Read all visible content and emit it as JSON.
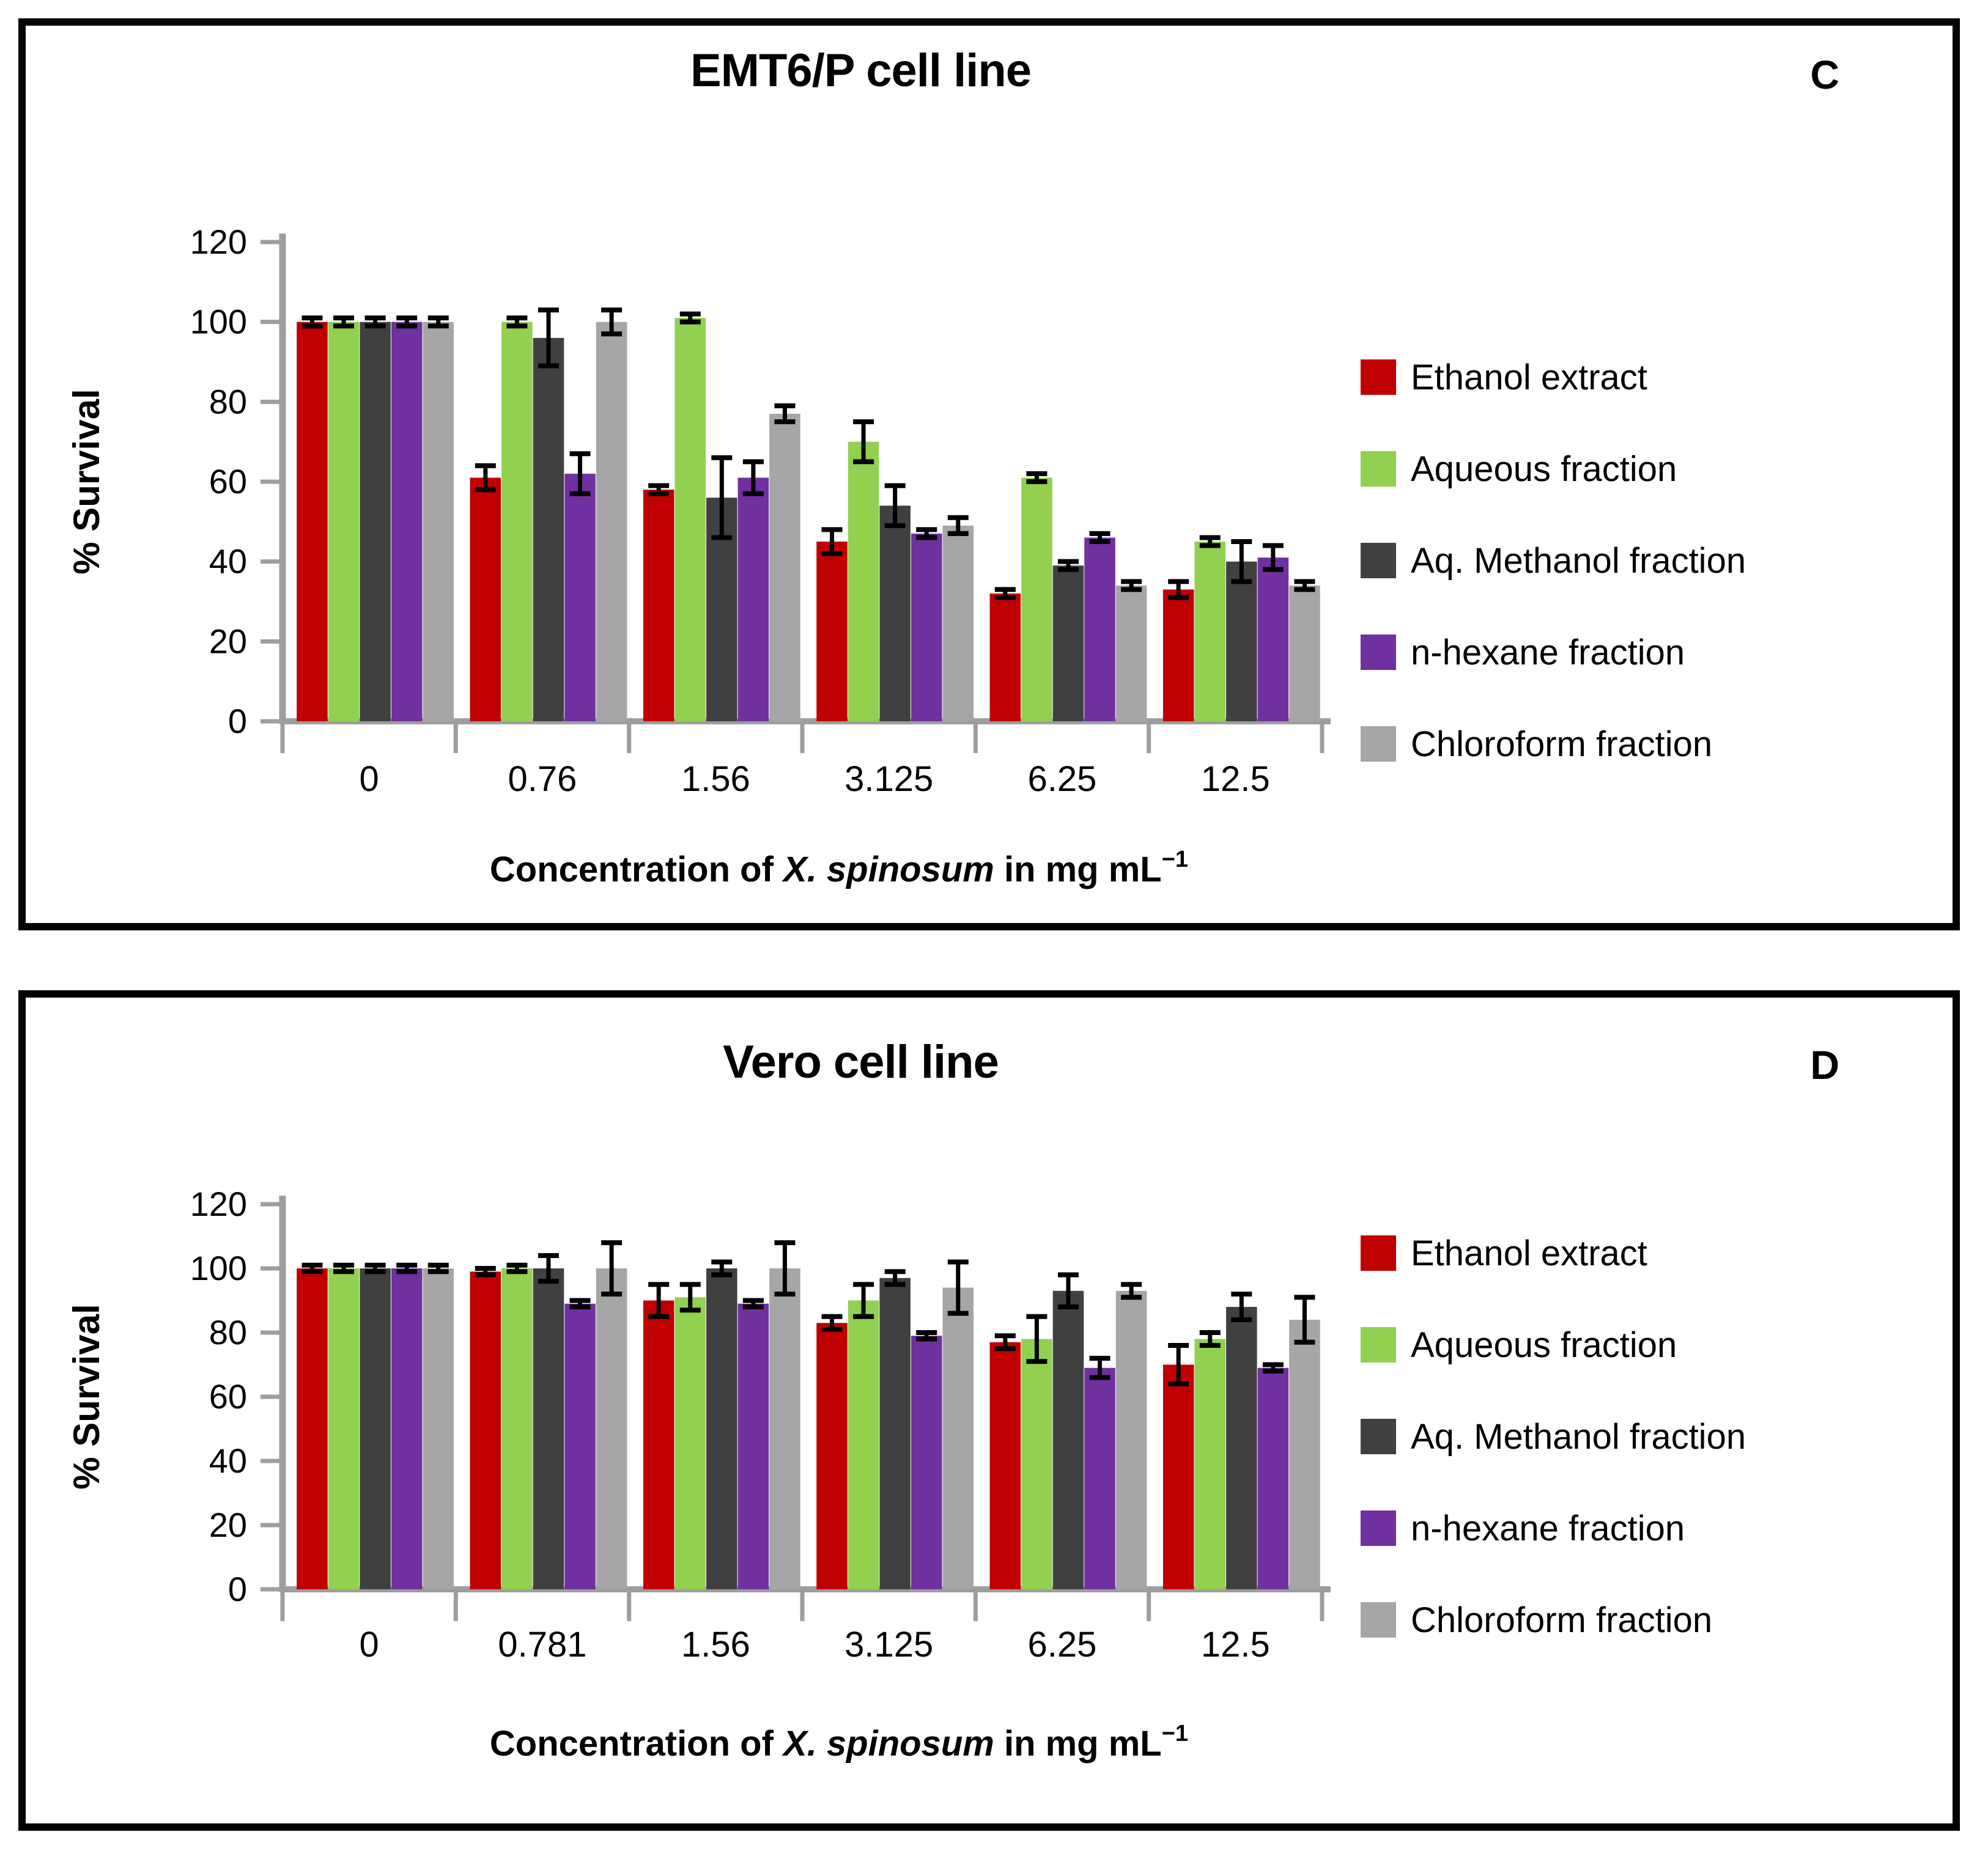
{
  "panels": [
    {
      "letter": "C",
      "title": "EMT6/P cell line"
    },
    {
      "letter": "D",
      "title": "Vero cell line"
    }
  ],
  "axis": {
    "ylabel": "% Survival",
    "xlabel_prefix": "Concentration of ",
    "xlabel_species": "X. spinosum",
    "xlabel_middle": " in mg mL",
    "xlabel_exponent": "−1"
  },
  "colors": {
    "ethanol": "#C00000",
    "aqueous": "#92D050",
    "aq_methanol": "#404040",
    "n_hexane": "#7030A0",
    "chloroform": "#A6A6A6",
    "axis_gray": "#9E9E9E",
    "error_bar": "#000000"
  },
  "chart_data": [
    {
      "type": "bar",
      "title": "EMT6/P cell line",
      "ylabel": "% Survival",
      "xlabel": "Concentration of X. spinosum in mg mL−1",
      "ylim": [
        0,
        120
      ],
      "ytick_step": 20,
      "grid": false,
      "legend_position": "right",
      "categories": [
        "0",
        "0.76",
        "1.56",
        "3.125",
        "6.25",
        "12.5"
      ],
      "series": [
        {
          "name": "Ethanol extract",
          "color": "#C00000",
          "values": [
            100,
            61,
            58,
            45,
            32,
            33
          ],
          "errors": [
            1,
            3,
            1,
            3,
            1,
            2
          ]
        },
        {
          "name": "Aqueous fraction",
          "color": "#92D050",
          "values": [
            100,
            100,
            101,
            70,
            61,
            45
          ],
          "errors": [
            1,
            1,
            1,
            5,
            1,
            1
          ]
        },
        {
          "name": "Aq. Methanol fraction",
          "color": "#404040",
          "values": [
            100,
            96,
            56,
            54,
            39,
            40
          ],
          "errors": [
            1,
            7,
            10,
            5,
            1,
            5
          ]
        },
        {
          "name": "n-hexane fraction",
          "color": "#7030A0",
          "values": [
            100,
            62,
            61,
            47,
            46,
            41
          ],
          "errors": [
            1,
            5,
            4,
            1,
            1,
            3
          ]
        },
        {
          "name": "Chloroform fraction",
          "color": "#A6A6A6",
          "values": [
            100,
            100,
            77,
            49,
            34,
            34
          ],
          "errors": [
            1,
            3,
            2,
            2,
            1,
            1
          ]
        }
      ]
    },
    {
      "type": "bar",
      "title": "Vero cell line",
      "ylabel": "% Survival",
      "xlabel": "Concentration of X. spinosum in mg mL−1",
      "ylim": [
        0,
        120
      ],
      "ytick_step": 20,
      "grid": false,
      "legend_position": "right",
      "categories": [
        "0",
        "0.781",
        "1.56",
        "3.125",
        "6.25",
        "12.5"
      ],
      "series": [
        {
          "name": "Ethanol extract",
          "color": "#C00000",
          "values": [
            100,
            99,
            90,
            83,
            77,
            70
          ],
          "errors": [
            1,
            1,
            5,
            2,
            2,
            6
          ]
        },
        {
          "name": "Aqueous fraction",
          "color": "#92D050",
          "values": [
            100,
            100,
            91,
            90,
            78,
            78
          ],
          "errors": [
            1,
            1,
            4,
            5,
            7,
            2
          ]
        },
        {
          "name": "Aq. Methanol fraction",
          "color": "#404040",
          "values": [
            100,
            100,
            100,
            97,
            93,
            88
          ],
          "errors": [
            1,
            4,
            2,
            2,
            5,
            4
          ]
        },
        {
          "name": "n-hexane fraction",
          "color": "#7030A0",
          "values": [
            100,
            89,
            89,
            79,
            69,
            69
          ],
          "errors": [
            1,
            1,
            1,
            1,
            3,
            1
          ]
        },
        {
          "name": "Chloroform fraction",
          "color": "#A6A6A6",
          "values": [
            100,
            100,
            100,
            94,
            93,
            84
          ],
          "errors": [
            1,
            8,
            8,
            8,
            2,
            7
          ]
        }
      ]
    }
  ]
}
